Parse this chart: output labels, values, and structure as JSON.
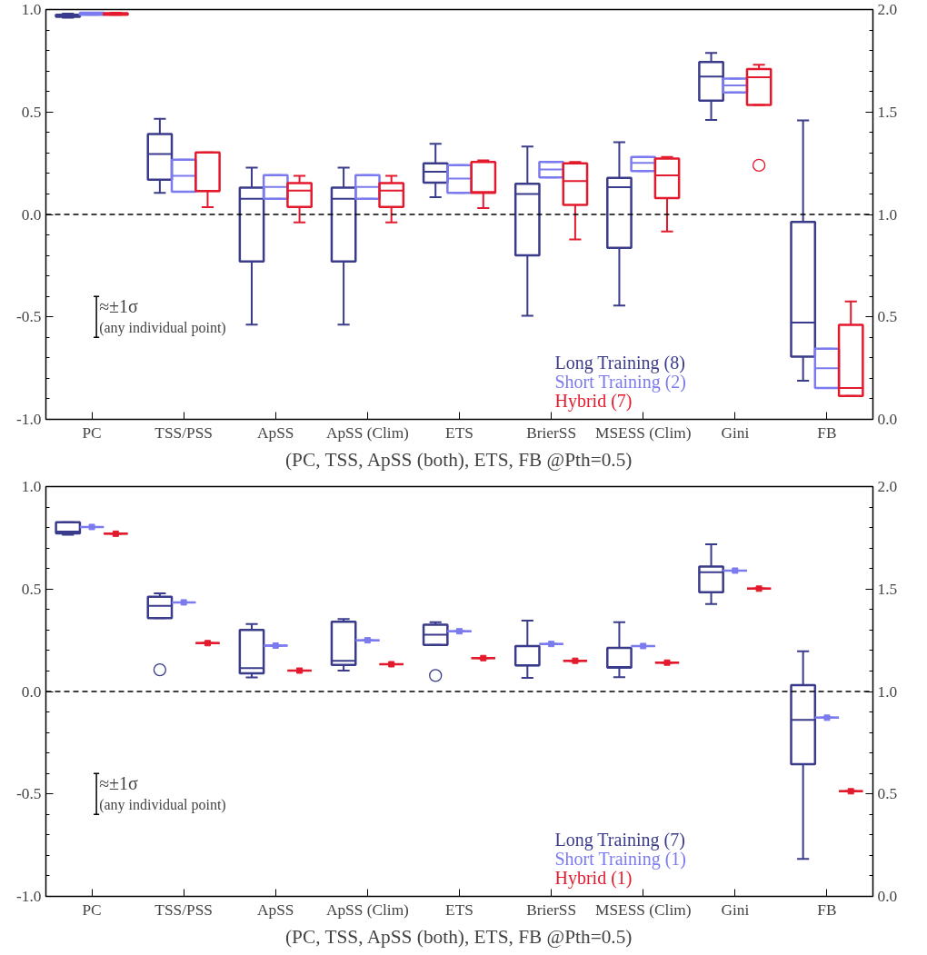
{
  "chart_data": [
    {
      "type": "box",
      "xlabel": "(PC, TSS, ApSS (both), ETS, FB @Pth=0.5)",
      "categories": [
        "PC",
        "TSS/PSS",
        "ApSS",
        "ApSS (Clim)",
        "ETS",
        "BrierSS",
        "MSESS (Clim)",
        "Gini",
        "FB"
      ],
      "ylim": [
        -1.0,
        1.0
      ],
      "yticks": [
        {
          "value": -1.0,
          "label": "-1.0"
        },
        {
          "value": -0.9,
          "label": null
        },
        {
          "value": -0.8,
          "label": null
        },
        {
          "value": -0.7,
          "label": null
        },
        {
          "value": -0.6,
          "label": null
        },
        {
          "value": -0.5,
          "label": "-0.5"
        },
        {
          "value": -0.4,
          "label": null
        },
        {
          "value": -0.3,
          "label": null
        },
        {
          "value": -0.2,
          "label": null
        },
        {
          "value": -0.1,
          "label": null
        },
        {
          "value": 0,
          "label": "0.0"
        },
        {
          "value": 0.1,
          "label": null
        },
        {
          "value": 0.2,
          "label": null
        },
        {
          "value": 0.3,
          "label": null
        },
        {
          "value": 0.4,
          "label": null
        },
        {
          "value": 0.5,
          "label": "0.5"
        },
        {
          "value": 0.6,
          "label": null
        },
        {
          "value": 0.7,
          "label": null
        },
        {
          "value": 0.8,
          "label": null
        },
        {
          "value": 0.9,
          "label": null
        },
        {
          "value": 1.0,
          "label": "1.0"
        }
      ],
      "y2lim": [
        0.0,
        2.0
      ],
      "y2ticks": [
        {
          "value": 0,
          "label": "0.0"
        },
        {
          "value": 0.1,
          "label": null
        },
        {
          "value": 0.2,
          "label": null
        },
        {
          "value": 0.3,
          "label": null
        },
        {
          "value": 0.4,
          "label": null
        },
        {
          "value": 0.5,
          "label": "0.5"
        },
        {
          "value": 0.6,
          "label": null
        },
        {
          "value": 0.7,
          "label": null
        },
        {
          "value": 0.8,
          "label": null
        },
        {
          "value": 0.9,
          "label": null
        },
        {
          "value": 1.0,
          "label": "1.0"
        },
        {
          "value": 1.1,
          "label": null
        },
        {
          "value": 1.2,
          "label": null
        },
        {
          "value": 1.3,
          "label": null
        },
        {
          "value": 1.4,
          "label": null
        },
        {
          "value": 1.5,
          "label": "1.5"
        },
        {
          "value": 1.6,
          "label": null
        },
        {
          "value": 1.7,
          "label": null
        },
        {
          "value": 1.8,
          "label": null
        },
        {
          "value": 1.9,
          "label": null
        },
        {
          "value": 2.0,
          "label": "2.0"
        }
      ],
      "grid": false,
      "legend": "bottom",
      "ref_lines": [
        {
          "axis": "y",
          "value": 0,
          "line_style": "dashed",
          "color": "#000000"
        }
      ],
      "annotations": [
        "≈±1σ",
        "(any individual point)"
      ],
      "series": [
        {
          "name": "Long Training (8)",
          "color": "#3b3b8c",
          "boxes": [
            {
              "low": 0.96,
              "q1": 0.965,
              "median": 0.97,
              "q3": 0.975,
              "high": 0.98
            },
            {
              "low": 0.105,
              "q1": 0.17,
              "median": 0.295,
              "q3": 0.392,
              "high": 0.467
            },
            {
              "low": -0.538,
              "q1": -0.23,
              "median": 0.077,
              "q3": 0.131,
              "high": 0.228
            },
            {
              "low": -0.538,
              "q1": -0.23,
              "median": 0.077,
              "q3": 0.131,
              "high": 0.228
            },
            {
              "low": 0.084,
              "q1": 0.155,
              "median": 0.208,
              "q3": 0.25,
              "high": 0.345
            },
            {
              "low": -0.495,
              "q1": -0.2,
              "median": 0.1,
              "q3": 0.15,
              "high": 0.331
            },
            {
              "low": -0.445,
              "q1": -0.163,
              "median": 0.133,
              "q3": 0.178,
              "high": 0.353
            },
            {
              "low": 0.461,
              "q1": 0.555,
              "median": 0.673,
              "q3": 0.744,
              "high": 0.788
            },
            null
          ]
        },
        {
          "name": "Short Training (2)",
          "color": "#7b7bef",
          "boxes": [
            {
              "low": 0.975,
              "q1": 0.975,
              "median": 0.98,
              "q3": 0.985,
              "high": 0.985
            },
            {
              "low": 0.111,
              "q1": 0.111,
              "median": 0.189,
              "q3": 0.267,
              "high": 0.267
            },
            {
              "low": 0.077,
              "q1": 0.077,
              "median": 0.134,
              "q3": 0.192,
              "high": 0.192
            },
            {
              "low": 0.077,
              "q1": 0.077,
              "median": 0.134,
              "q3": 0.192,
              "high": 0.192
            },
            {
              "low": 0.105,
              "q1": 0.105,
              "median": 0.175,
              "q3": 0.241,
              "high": 0.241
            },
            {
              "low": 0.181,
              "q1": 0.181,
              "median": 0.22,
              "q3": 0.256,
              "high": 0.256
            },
            {
              "low": 0.212,
              "q1": 0.212,
              "median": 0.252,
              "q3": 0.28,
              "high": 0.28
            },
            {
              "low": 0.595,
              "q1": 0.595,
              "median": 0.63,
              "q3": 0.663,
              "high": 0.663
            },
            null
          ]
        },
        {
          "name": "Hybrid (7)",
          "color": "#e31a2d",
          "boxes": [
            {
              "low": 0.975,
              "q1": 0.975,
              "median": 0.98,
              "q3": 0.982,
              "high": 0.985
            },
            {
              "low": 0.036,
              "q1": 0.114,
              "median": 0.114,
              "q3": 0.303,
              "high": 0.303
            },
            {
              "low": -0.039,
              "q1": 0.037,
              "median": 0.116,
              "q3": 0.153,
              "high": 0.189
            },
            {
              "low": -0.039,
              "q1": 0.037,
              "median": 0.116,
              "q3": 0.153,
              "high": 0.189
            },
            {
              "low": 0.031,
              "q1": 0.105,
              "median": 0.11,
              "q3": 0.256,
              "high": 0.264
            },
            {
              "low": -0.122,
              "q1": 0.047,
              "median": 0.163,
              "q3": 0.25,
              "high": 0.256
            },
            {
              "low": -0.083,
              "q1": 0.08,
              "median": 0.191,
              "q3": 0.273,
              "high": 0.28
            },
            {
              "low": 0.534,
              "q1": 0.534,
              "median": 0.67,
              "q3": 0.709,
              "high": 0.731,
              "outliers": [
                0.24
              ]
            },
            null
          ]
        },
        {
          "color": "#3b3b8c",
          "axis": "y2",
          "boxes": [
            null,
            null,
            null,
            null,
            null,
            null,
            null,
            null,
            {
              "low": 0.189,
              "q1": 0.306,
              "median": 0.472,
              "q3": 0.963,
              "high": 1.459
            }
          ]
        },
        {
          "color": "#7b7bef",
          "axis": "y2",
          "boxes": [
            null,
            null,
            null,
            null,
            null,
            null,
            null,
            null,
            {
              "low": 0.153,
              "q1": 0.153,
              "median": 0.25,
              "q3": 0.345,
              "high": 0.345
            }
          ]
        },
        {
          "color": "#e31a2d",
          "axis": "y2",
          "boxes": [
            null,
            null,
            null,
            null,
            null,
            null,
            null,
            null,
            {
              "low": 0.114,
              "q1": 0.114,
              "median": 0.153,
              "q3": 0.461,
              "high": 0.575
            }
          ]
        }
      ]
    },
    {
      "type": "box",
      "xlabel": "(PC, TSS, ApSS (both), ETS, FB @Pth=0.5)",
      "categories": [
        "PC",
        "TSS/PSS",
        "ApSS",
        "ApSS (Clim)",
        "ETS",
        "BrierSS",
        "MSESS (Clim)",
        "Gini",
        "FB"
      ],
      "ylim": [
        -1.0,
        1.0
      ],
      "yticks": [
        {
          "value": -1.0,
          "label": "-1.0"
        },
        {
          "value": -0.9,
          "label": null
        },
        {
          "value": -0.8,
          "label": null
        },
        {
          "value": -0.7,
          "label": null
        },
        {
          "value": -0.6,
          "label": null
        },
        {
          "value": -0.5,
          "label": "-0.5"
        },
        {
          "value": -0.4,
          "label": null
        },
        {
          "value": -0.3,
          "label": null
        },
        {
          "value": -0.2,
          "label": null
        },
        {
          "value": -0.1,
          "label": null
        },
        {
          "value": 0,
          "label": "0.0"
        },
        {
          "value": 0.1,
          "label": null
        },
        {
          "value": 0.2,
          "label": null
        },
        {
          "value": 0.3,
          "label": null
        },
        {
          "value": 0.4,
          "label": null
        },
        {
          "value": 0.5,
          "label": "0.5"
        },
        {
          "value": 0.6,
          "label": null
        },
        {
          "value": 0.7,
          "label": null
        },
        {
          "value": 0.8,
          "label": null
        },
        {
          "value": 0.9,
          "label": null
        },
        {
          "value": 1.0,
          "label": "1.0"
        }
      ],
      "y2lim": [
        0.0,
        2.0
      ],
      "y2ticks": [
        {
          "value": 0,
          "label": "0.0"
        },
        {
          "value": 0.1,
          "label": null
        },
        {
          "value": 0.2,
          "label": null
        },
        {
          "value": 0.3,
          "label": null
        },
        {
          "value": 0.4,
          "label": null
        },
        {
          "value": 0.5,
          "label": "0.5"
        },
        {
          "value": 0.6,
          "label": null
        },
        {
          "value": 0.7,
          "label": null
        },
        {
          "value": 0.8,
          "label": null
        },
        {
          "value": 0.9,
          "label": null
        },
        {
          "value": 1.0,
          "label": "1.0"
        },
        {
          "value": 1.1,
          "label": null
        },
        {
          "value": 1.2,
          "label": null
        },
        {
          "value": 1.3,
          "label": null
        },
        {
          "value": 1.4,
          "label": null
        },
        {
          "value": 1.5,
          "label": "1.5"
        },
        {
          "value": 1.6,
          "label": null
        },
        {
          "value": 1.7,
          "label": null
        },
        {
          "value": 1.8,
          "label": null
        },
        {
          "value": 1.9,
          "label": null
        },
        {
          "value": 2.0,
          "label": "2.0"
        }
      ],
      "grid": false,
      "legend": "bottom",
      "ref_lines": [
        {
          "axis": "y",
          "value": 0,
          "line_style": "dashed",
          "color": "#000000"
        }
      ],
      "annotations": [
        "≈±1σ",
        "(any individual point)"
      ],
      "series": [
        {
          "name": "Long Training (7)",
          "color": "#3b3b8c",
          "boxes": [
            {
              "low": 0.765,
              "q1": 0.772,
              "median": 0.78,
              "q3": 0.826,
              "high": 0.826
            },
            {
              "low": 0.358,
              "q1": 0.358,
              "median": 0.418,
              "q3": 0.462,
              "high": 0.479,
              "outliers": [
                0.106
              ]
            },
            {
              "low": 0.069,
              "q1": 0.089,
              "median": 0.114,
              "q3": 0.3,
              "high": 0.329
            },
            {
              "low": 0.102,
              "q1": 0.13,
              "median": 0.15,
              "q3": 0.34,
              "high": 0.354
            },
            {
              "low": 0.227,
              "q1": 0.227,
              "median": 0.277,
              "q3": 0.326,
              "high": 0.338,
              "outliers": [
                0.078
              ]
            },
            {
              "low": 0.067,
              "q1": 0.127,
              "median": 0.127,
              "q3": 0.222,
              "high": 0.346
            },
            {
              "low": 0.07,
              "q1": 0.116,
              "median": 0.12,
              "q3": 0.213,
              "high": 0.338
            },
            {
              "low": 0.427,
              "q1": 0.485,
              "median": 0.582,
              "q3": 0.61,
              "high": 0.718
            },
            null
          ]
        },
        {
          "name": "Short Training (1)",
          "color": "#7b7bef",
          "marker": "square",
          "boxes": [
            {
              "low": 0.803,
              "q1": 0.803,
              "median": 0.803,
              "q3": 0.803,
              "high": 0.803,
              "mean": 0.803
            },
            {
              "low": 0.435,
              "q1": 0.435,
              "median": 0.435,
              "q3": 0.435,
              "high": 0.435,
              "mean": 0.435
            },
            {
              "low": 0.224,
              "q1": 0.224,
              "median": 0.224,
              "q3": 0.224,
              "high": 0.224,
              "mean": 0.224
            },
            {
              "low": 0.25,
              "q1": 0.25,
              "median": 0.25,
              "q3": 0.25,
              "high": 0.25,
              "mean": 0.25
            },
            {
              "low": 0.294,
              "q1": 0.294,
              "median": 0.294,
              "q3": 0.294,
              "high": 0.294,
              "mean": 0.294
            },
            {
              "low": 0.232,
              "q1": 0.232,
              "median": 0.232,
              "q3": 0.232,
              "high": 0.232,
              "mean": 0.232
            },
            {
              "low": 0.222,
              "q1": 0.222,
              "median": 0.222,
              "q3": 0.222,
              "high": 0.222,
              "mean": 0.222
            },
            {
              "low": 0.59,
              "q1": 0.59,
              "median": 0.59,
              "q3": 0.59,
              "high": 0.59,
              "mean": 0.59
            },
            null
          ]
        },
        {
          "name": "Hybrid (1)",
          "color": "#e31a2d",
          "marker": "square",
          "boxes": [
            {
              "low": 0.77,
              "q1": 0.77,
              "median": 0.77,
              "q3": 0.77,
              "high": 0.77,
              "mean": 0.77
            },
            {
              "low": 0.236,
              "q1": 0.236,
              "median": 0.236,
              "q3": 0.236,
              "high": 0.236,
              "mean": 0.236
            },
            {
              "low": 0.102,
              "q1": 0.102,
              "median": 0.102,
              "q3": 0.102,
              "high": 0.102,
              "mean": 0.102
            },
            {
              "low": 0.133,
              "q1": 0.133,
              "median": 0.133,
              "q3": 0.133,
              "high": 0.133,
              "mean": 0.133
            },
            {
              "low": 0.163,
              "q1": 0.163,
              "median": 0.163,
              "q3": 0.163,
              "high": 0.163,
              "mean": 0.163
            },
            {
              "low": 0.15,
              "q1": 0.15,
              "median": 0.15,
              "q3": 0.15,
              "high": 0.15,
              "mean": 0.15
            },
            {
              "low": 0.141,
              "q1": 0.141,
              "median": 0.141,
              "q3": 0.141,
              "high": 0.141,
              "mean": 0.141
            },
            {
              "low": 0.502,
              "q1": 0.502,
              "median": 0.502,
              "q3": 0.502,
              "high": 0.502,
              "mean": 0.502
            },
            null
          ]
        },
        {
          "color": "#3b3b8c",
          "axis": "y2",
          "boxes": [
            null,
            null,
            null,
            null,
            null,
            null,
            null,
            null,
            {
              "low": 0.183,
              "q1": 0.645,
              "median": 0.861,
              "q3": 1.031,
              "high": 1.196
            }
          ]
        },
        {
          "color": "#7b7bef",
          "axis": "y2",
          "marker": "square",
          "boxes": [
            null,
            null,
            null,
            null,
            null,
            null,
            null,
            null,
            {
              "low": 0.872,
              "q1": 0.872,
              "median": 0.872,
              "q3": 0.872,
              "high": 0.872,
              "mean": 0.872
            }
          ]
        },
        {
          "color": "#e31a2d",
          "axis": "y2",
          "marker": "square",
          "boxes": [
            null,
            null,
            null,
            null,
            null,
            null,
            null,
            null,
            {
              "low": 0.513,
              "q1": 0.513,
              "median": 0.513,
              "q3": 0.513,
              "high": 0.513,
              "mean": 0.513
            }
          ]
        }
      ]
    }
  ]
}
